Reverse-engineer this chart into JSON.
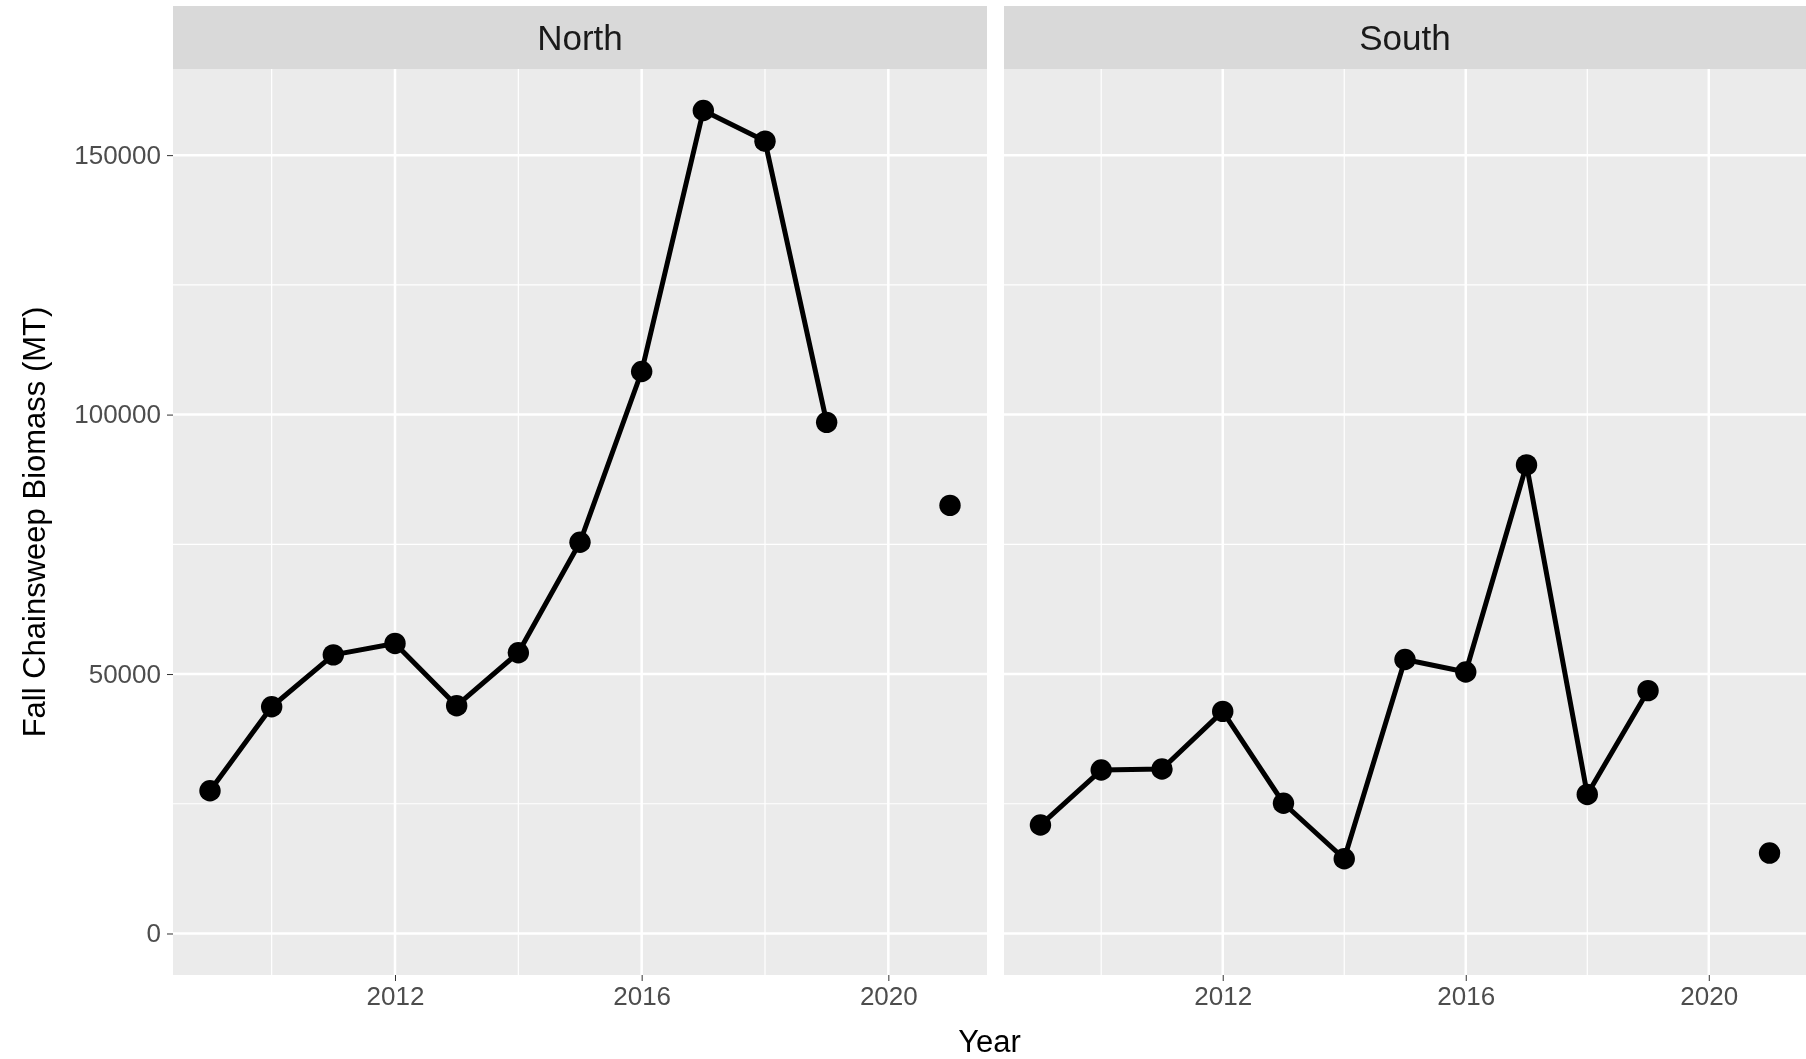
{
  "chart_data": [
    {
      "type": "line",
      "title": "North",
      "ylabel": "Fall Chainsweep Biomass (MT)",
      "xlabel": "Year",
      "x": [
        2009,
        2010,
        2011,
        2012,
        2013,
        2014,
        2015,
        2016,
        2017,
        2018,
        2019,
        2020,
        2021
      ],
      "series": [
        {
          "color": "#000000",
          "values": [
            27500,
            43700,
            53700,
            55900,
            43900,
            54100,
            75400,
            108300,
            158600,
            152700,
            98500,
            null,
            82500
          ]
        }
      ],
      "xlim": [
        2008.4,
        2021.6
      ],
      "xticks": [
        2012,
        2016,
        2020
      ],
      "ylim": [
        -8000,
        166600
      ],
      "yticks": [
        0,
        50000,
        100000,
        150000
      ],
      "grid": true,
      "marker": "circle",
      "line_style": "solid"
    },
    {
      "type": "line",
      "title": "South",
      "x": [
        2009,
        2010,
        2011,
        2012,
        2013,
        2014,
        2015,
        2016,
        2017,
        2018,
        2019,
        2020,
        2021
      ],
      "series": [
        {
          "color": "#000000",
          "values": [
            20900,
            31500,
            31700,
            42800,
            25100,
            14400,
            52800,
            50400,
            90300,
            26800,
            46800,
            null,
            15500
          ]
        }
      ],
      "xlim": [
        2008.4,
        2021.6
      ],
      "xticks": [
        2012,
        2016,
        2020
      ],
      "ylim": [
        -8000,
        166600
      ],
      "yticks": [
        0,
        50000,
        100000,
        150000
      ],
      "grid": true,
      "marker": "circle",
      "line_style": "solid",
      "tick_labels": "x"
    }
  ]
}
